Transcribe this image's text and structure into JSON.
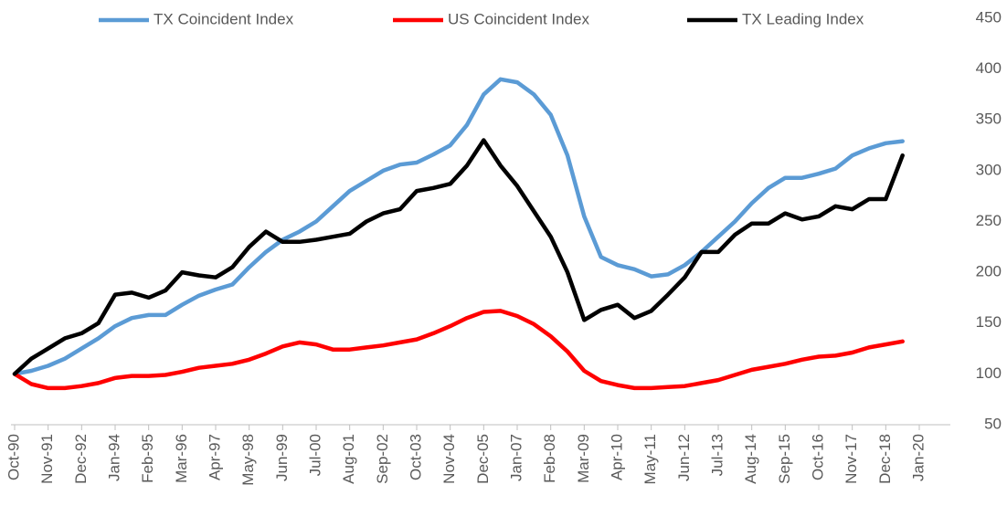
{
  "chart_data": {
    "type": "line",
    "categories": [
      "Oct-90",
      null,
      "Nov-91",
      null,
      "Dec-92",
      null,
      "Jan-94",
      null,
      "Feb-95",
      null,
      "Mar-96",
      null,
      "Apr-97",
      null,
      "May-98",
      null,
      "Jun-99",
      null,
      "Jul-00",
      null,
      "Aug-01",
      null,
      "Sep-02",
      null,
      "Oct-03",
      null,
      "Nov-04",
      null,
      "Dec-05",
      null,
      "Jan-07",
      null,
      "Feb-08",
      null,
      "Mar-09",
      null,
      "Apr-10",
      null,
      "May-11",
      null,
      "Jun-12",
      null,
      "Jul-13",
      null,
      "Aug-14",
      null,
      "Sep-15",
      null,
      "Oct-16",
      null,
      "Nov-17",
      null,
      "Dec-18",
      null,
      "Jan-20"
    ],
    "series": [
      {
        "name": "TX Coincident Index",
        "color": "#5b9bd5",
        "values": [
          100,
          103,
          108,
          115,
          125,
          135,
          147,
          155,
          158,
          158,
          168,
          177,
          183,
          188,
          205,
          220,
          232,
          240,
          250,
          265,
          280,
          290,
          300,
          306,
          308,
          316,
          325,
          345,
          375,
          390,
          387,
          375,
          355,
          315,
          255,
          215,
          207,
          203,
          196,
          198,
          207,
          220,
          235,
          250,
          268,
          283,
          293,
          293,
          297,
          302,
          315,
          322,
          327,
          329,
          null
        ]
      },
      {
        "name": "US Coincident Index",
        "color": "#ff0000",
        "values": [
          100,
          90,
          86,
          86,
          88,
          91,
          96,
          98,
          98,
          99,
          102,
          106,
          108,
          110,
          114,
          120,
          127,
          131,
          129,
          124,
          124,
          126,
          128,
          131,
          134,
          140,
          147,
          155,
          161,
          162,
          157,
          149,
          137,
          122,
          103,
          93,
          89,
          86,
          86,
          87,
          88,
          91,
          94,
          99,
          104,
          107,
          110,
          114,
          117,
          118,
          121,
          126,
          129,
          132,
          null
        ]
      },
      {
        "name": "TX Leading Index",
        "color": "#000000",
        "values": [
          100,
          115,
          125,
          135,
          140,
          150,
          178,
          180,
          175,
          182,
          200,
          197,
          195,
          205,
          225,
          240,
          230,
          230,
          232,
          235,
          238,
          250,
          258,
          262,
          280,
          283,
          287,
          305,
          330,
          305,
          285,
          260,
          235,
          200,
          153,
          163,
          168,
          155,
          162,
          178,
          195,
          220,
          220,
          237,
          248,
          248,
          258,
          252,
          255,
          265,
          262,
          272,
          272,
          315,
          null
        ]
      }
    ],
    "ylim": [
      50,
      450
    ],
    "yticks": [
      50,
      100,
      150,
      200,
      250,
      300,
      350,
      400,
      450
    ],
    "grid": false,
    "legend": "top"
  }
}
